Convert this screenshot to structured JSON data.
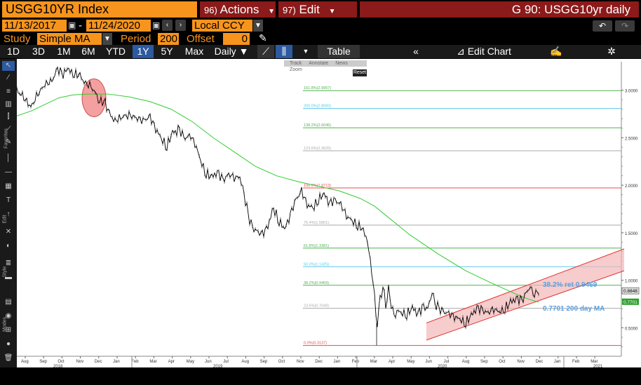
{
  "header": {
    "ticker": "USGG10YR Index",
    "actions_num": "96)",
    "actions_label": "Actions",
    "edit_num": "97)",
    "edit_label": "Edit",
    "chart_title": "G 90: USGG10yr daily"
  },
  "controls": {
    "start_date": "11/13/2017",
    "dash": "-",
    "end_date": "11/24/2020",
    "currency": "Local CCY",
    "study_label": "Study",
    "study_value": "Simple MA",
    "period_label": "Period",
    "period_value": "200",
    "offset_label": "Offset",
    "offset_value": "0"
  },
  "range_bar": {
    "buttons": [
      "1D",
      "3D",
      "1M",
      "6M",
      "YTD",
      "1Y",
      "5Y",
      "Max"
    ],
    "active": "1Y",
    "frequency": "Daily",
    "table_label": "Table",
    "edit_chart_label": "Edit Chart"
  },
  "sub_tools": {
    "labels": [
      "Track",
      "Annotate",
      "News",
      "Zoom"
    ],
    "reset": "Reset"
  },
  "left_tools": {
    "favorites_label": "Favorites",
    "edit_label": "Edit",
    "style_label": "Style",
    "modes_label": "Modes"
  },
  "colors": {
    "price": "#000000",
    "ma": "#32cd32",
    "fib_grey": "#aaaaaa",
    "fib_red": "#e05050",
    "fib_green": "#50b050",
    "fib_cyan": "#5bc8e8",
    "channel_fill": "#f4b6b6",
    "channel_line": "#e03030",
    "highlight_circle": "#f08080",
    "annotation_blue": "#5aa0e0",
    "last_price_label": "#cfe8cf",
    "ma_label": "#2ca02c"
  },
  "chart_data": {
    "type": "line",
    "title": "",
    "xlabel": "",
    "ylabel": "",
    "ylim": [
      0.2,
      3.3
    ],
    "x_axis": {
      "months": [
        "Aug",
        "Sep",
        "Oct",
        "Nov",
        "Dec",
        "Jan",
        "Feb",
        "Mar",
        "Apr",
        "May",
        "Jun",
        "Jul",
        "Aug",
        "Sep",
        "Oct",
        "Nov",
        "Dec",
        "Jan",
        "Feb",
        "Mar",
        "Apr",
        "May",
        "Jun",
        "Jul",
        "Aug",
        "Sep",
        "Oct",
        "Nov",
        "Dec",
        "Jan",
        "Feb",
        "Mar"
      ],
      "years": [
        "2018",
        "2019",
        "2020",
        "2021"
      ]
    },
    "y_ticks": [
      "3.0000",
      "2.5000",
      "2.0000",
      "1.5000",
      "1.0000",
      "0.5000"
    ],
    "y_tick_values": [
      3.0,
      2.5,
      2.0,
      1.5,
      1.0,
      0.5
    ],
    "fib_levels": [
      {
        "label": "161.8%(2.9957)",
        "value": 2.9957,
        "color": "green"
      },
      {
        "label": "200.0%(2.8083)",
        "value": 2.8083,
        "color": "cyan"
      },
      {
        "label": "138.2%(2.6046)",
        "value": 2.6046,
        "color": "green"
      },
      {
        "label": "123.6%(2.3625)",
        "value": 2.3625,
        "color": "grey"
      },
      {
        "label": "100.0%(1.9713)",
        "value": 1.9713,
        "color": "red"
      },
      {
        "label": "76.4%(1.5801)",
        "value": 1.5801,
        "color": "grey"
      },
      {
        "label": "61.8%(1.3381)",
        "value": 1.3381,
        "color": "green"
      },
      {
        "label": "50.0%(1.1425)",
        "value": 1.1425,
        "color": "cyan"
      },
      {
        "label": "38.2%(0.9469)",
        "value": 0.9469,
        "color": "green"
      },
      {
        "label": "23.6%(0.7049)",
        "value": 0.7049,
        "color": "grey"
      },
      {
        "label": "0.0%(0.3137)",
        "value": 0.3137,
        "color": "red"
      }
    ],
    "series": [
      {
        "name": "USGG10YR",
        "points": [
          [
            0,
            3.0
          ],
          [
            10,
            2.92
          ],
          [
            20,
            2.82
          ],
          [
            30,
            2.96
          ],
          [
            40,
            3.06
          ],
          [
            50,
            3.1
          ],
          [
            58,
            3.22
          ],
          [
            66,
            3.18
          ],
          [
            74,
            3.22
          ],
          [
            80,
            3.15
          ],
          [
            88,
            3.18
          ],
          [
            96,
            3.08
          ],
          [
            104,
            3.05
          ],
          [
            112,
            2.98
          ],
          [
            118,
            2.88
          ],
          [
            124,
            2.9
          ],
          [
            132,
            2.75
          ],
          [
            140,
            2.68
          ],
          [
            150,
            2.72
          ],
          [
            160,
            2.74
          ],
          [
            170,
            2.71
          ],
          [
            180,
            2.68
          ],
          [
            190,
            2.72
          ],
          [
            198,
            2.6
          ],
          [
            206,
            2.48
          ],
          [
            214,
            2.41
          ],
          [
            222,
            2.55
          ],
          [
            232,
            2.58
          ],
          [
            240,
            2.5
          ],
          [
            248,
            2.52
          ],
          [
            256,
            2.4
          ],
          [
            262,
            2.25
          ],
          [
            270,
            2.12
          ],
          [
            278,
            2.08
          ],
          [
            286,
            2.15
          ],
          [
            294,
            2.05
          ],
          [
            302,
            2.12
          ],
          [
            310,
            2.08
          ],
          [
            318,
            2.08
          ],
          [
            324,
            1.9
          ],
          [
            330,
            1.68
          ],
          [
            336,
            1.55
          ],
          [
            342,
            1.52
          ],
          [
            350,
            1.48
          ],
          [
            358,
            1.58
          ],
          [
            366,
            1.75
          ],
          [
            374,
            1.62
          ],
          [
            382,
            1.53
          ],
          [
            390,
            1.7
          ],
          [
            398,
            1.85
          ],
          [
            406,
            1.94
          ],
          [
            414,
            1.8
          ],
          [
            422,
            1.75
          ],
          [
            430,
            1.85
          ],
          [
            438,
            1.9
          ],
          [
            446,
            1.82
          ],
          [
            454,
            1.84
          ],
          [
            462,
            1.8
          ],
          [
            470,
            1.68
          ],
          [
            478,
            1.62
          ],
          [
            486,
            1.58
          ],
          [
            494,
            1.52
          ],
          [
            500,
            1.4
          ],
          [
            504,
            1.2
          ],
          [
            508,
            1.0
          ],
          [
            512,
            0.62
          ],
          [
            514,
            0.54
          ],
          [
            518,
            0.8
          ],
          [
            522,
            0.95
          ],
          [
            526,
            0.72
          ],
          [
            530,
            0.9
          ],
          [
            534,
            0.76
          ],
          [
            538,
            0.6
          ],
          [
            542,
            0.68
          ],
          [
            548,
            0.65
          ],
          [
            556,
            0.64
          ],
          [
            564,
            0.7
          ],
          [
            572,
            0.66
          ],
          [
            580,
            0.72
          ],
          [
            586,
            0.7
          ],
          [
            592,
            0.88
          ],
          [
            596,
            0.75
          ],
          [
            602,
            0.7
          ],
          [
            608,
            0.67
          ],
          [
            616,
            0.65
          ],
          [
            624,
            0.62
          ],
          [
            632,
            0.58
          ],
          [
            640,
            0.55
          ],
          [
            648,
            0.62
          ],
          [
            656,
            0.72
          ],
          [
            664,
            0.68
          ],
          [
            672,
            0.66
          ],
          [
            680,
            0.7
          ],
          [
            688,
            0.66
          ],
          [
            696,
            0.7
          ],
          [
            704,
            0.76
          ],
          [
            712,
            0.82
          ],
          [
            720,
            0.78
          ],
          [
            726,
            0.86
          ],
          [
            732,
            0.94
          ],
          [
            736,
            0.84
          ],
          [
            740,
            0.88
          ],
          [
            744,
            0.85
          ]
        ]
      },
      {
        "name": "200 day MA",
        "points": [
          [
            0,
            2.73
          ],
          [
            20,
            2.78
          ],
          [
            40,
            2.85
          ],
          [
            60,
            2.92
          ],
          [
            80,
            2.95
          ],
          [
            100,
            2.96
          ],
          [
            130,
            2.96
          ],
          [
            160,
            2.93
          ],
          [
            190,
            2.88
          ],
          [
            220,
            2.8
          ],
          [
            250,
            2.67
          ],
          [
            280,
            2.5
          ],
          [
            310,
            2.35
          ],
          [
            340,
            2.2
          ],
          [
            370,
            2.1
          ],
          [
            400,
            2.04
          ],
          [
            430,
            1.99
          ],
          [
            460,
            1.94
          ],
          [
            490,
            1.86
          ],
          [
            510,
            1.78
          ],
          [
            530,
            1.66
          ],
          [
            560,
            1.48
          ],
          [
            600,
            1.28
          ],
          [
            640,
            1.1
          ],
          [
            680,
            0.96
          ],
          [
            710,
            0.86
          ],
          [
            730,
            0.8
          ],
          [
            744,
            0.77
          ]
        ]
      }
    ],
    "channel": {
      "lower_start": [
        584,
        0.37
      ],
      "lower_end": [
        866,
        1.1
      ],
      "upper_start": [
        584,
        0.55
      ],
      "upper_end": [
        866,
        1.33
      ]
    },
    "annotations": {
      "ret_label": "38.2% ret 0.9469",
      "ma_label": "0.7701 200 day MA",
      "last_price": "0.8848",
      "last_ma": "0.7701"
    }
  }
}
